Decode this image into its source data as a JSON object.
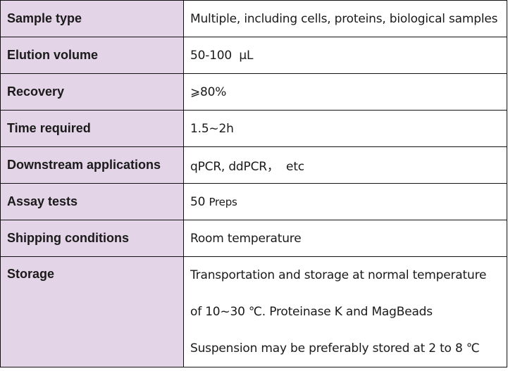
{
  "table": {
    "rows": [
      {
        "label": "Sample type",
        "value": "Multiple, including cells, proteins, biological samples"
      },
      {
        "label": "Elution volume",
        "value": "50-100  μL"
      },
      {
        "label": "Recovery",
        "value": "⩾80%"
      },
      {
        "label": "Time required",
        "value": "1.5~2h"
      },
      {
        "label": "Downstream applications",
        "value": "qPCR, ddPCR，  etc"
      },
      {
        "label": "Assay tests",
        "value": "50",
        "value_unit": "Preps"
      },
      {
        "label": "Shipping conditions",
        "value": "Room temperature"
      },
      {
        "label": "Storage",
        "lines": [
          "Transportation and storage at normal temperature",
          "of 10~30 ℃. Proteinase K and MagBeads",
          "Suspension may be preferably stored at 2 to 8 ℃"
        ]
      }
    ],
    "colors": {
      "label_bg": "#e3d4e7",
      "border": "#111111"
    }
  }
}
